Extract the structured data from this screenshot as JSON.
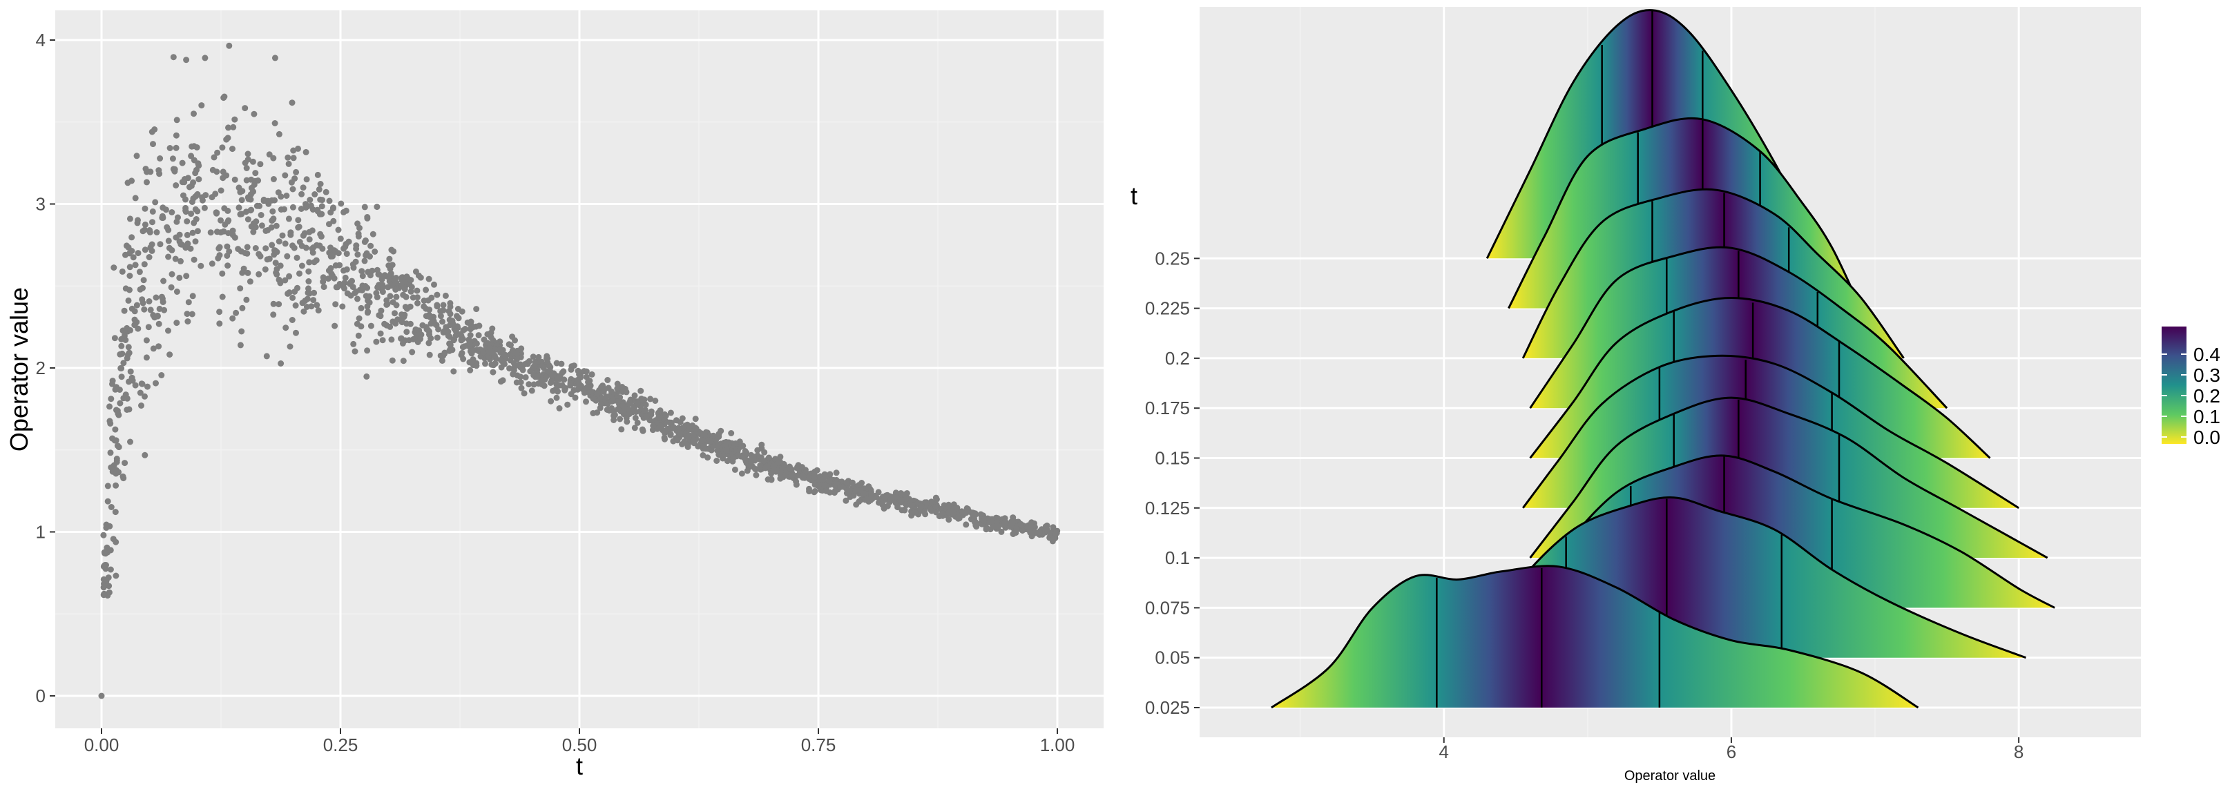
{
  "colors": {
    "panel_bg": "#ebebeb",
    "grid_major": "#ffffff",
    "grid_minor": "#f2f2f2",
    "point": "#7f7f7f",
    "ridge_line": "#000000",
    "viridis": [
      "#fde725",
      "#5ec962",
      "#21918c",
      "#3b528b",
      "#440154"
    ]
  },
  "chart_data": [
    {
      "type": "scatter",
      "xlabel": "t",
      "ylabel": "Operator value",
      "xlim": [
        0,
        1
      ],
      "ylim": [
        0,
        4
      ],
      "x_ticks": [
        "0.00",
        "0.25",
        "0.50",
        "0.75",
        "1.00"
      ],
      "y_ticks": [
        "0",
        "1",
        "2",
        "3",
        "4"
      ],
      "grid": true,
      "legend": "none",
      "n_points": 2000,
      "point_color": "#7f7f7f",
      "trend": [
        {
          "x": 0.0,
          "y": 0.0
        },
        {
          "x": 0.01,
          "y": 1.3
        },
        {
          "x": 0.03,
          "y": 2.35
        },
        {
          "x": 0.06,
          "y": 2.75
        },
        {
          "x": 0.1,
          "y": 2.95
        },
        {
          "x": 0.15,
          "y": 2.95
        },
        {
          "x": 0.2,
          "y": 2.8
        },
        {
          "x": 0.25,
          "y": 2.6
        },
        {
          "x": 0.3,
          "y": 2.42
        },
        {
          "x": 0.4,
          "y": 2.12
        },
        {
          "x": 0.5,
          "y": 1.9
        },
        {
          "x": 0.6,
          "y": 1.63
        },
        {
          "x": 0.7,
          "y": 1.4
        },
        {
          "x": 0.8,
          "y": 1.23
        },
        {
          "x": 0.9,
          "y": 1.1
        },
        {
          "x": 1.0,
          "y": 0.98
        }
      ],
      "spread": [
        {
          "x": 0.01,
          "s": 0.35
        },
        {
          "x": 0.05,
          "s": 0.45
        },
        {
          "x": 0.1,
          "s": 0.42
        },
        {
          "x": 0.2,
          "s": 0.3
        },
        {
          "x": 0.3,
          "s": 0.14
        },
        {
          "x": 0.4,
          "s": 0.08
        },
        {
          "x": 0.5,
          "s": 0.06
        },
        {
          "x": 0.75,
          "s": 0.03
        },
        {
          "x": 1.0,
          "s": 0.02
        }
      ]
    },
    {
      "type": "ridgeline",
      "xlabel": "Operator value",
      "ylabel": "t",
      "xlim": [
        2.3,
        8.85
      ],
      "x_ticks": [
        "4",
        "6",
        "8"
      ],
      "y_categories": [
        "0.025",
        "0.05",
        "0.075",
        "0.1",
        "0.125",
        "0.15",
        "0.175",
        "0.2",
        "0.225",
        "0.25"
      ],
      "fill": "viridis tail probability (0 at tails to 0.5 at median)",
      "quantile_lines": [
        0.25,
        0.5,
        0.75
      ],
      "legend": {
        "position": "right",
        "labels": [
          "0.4",
          "0.3",
          "0.2",
          "0.1",
          "0.0"
        ]
      },
      "grid": true,
      "series": [
        {
          "t": "0.025",
          "range": [
            2.8,
            7.3
          ],
          "quantiles": [
            3.95,
            4.68,
            5.5
          ],
          "density": [
            [
              2.8,
              0
            ],
            [
              3.2,
              0.25
            ],
            [
              3.5,
              0.62
            ],
            [
              3.8,
              0.82
            ],
            [
              4.1,
              0.8
            ],
            [
              4.4,
              0.85
            ],
            [
              4.8,
              0.88
            ],
            [
              5.2,
              0.75
            ],
            [
              5.6,
              0.55
            ],
            [
              6.0,
              0.42
            ],
            [
              6.4,
              0.36
            ],
            [
              6.9,
              0.22
            ],
            [
              7.3,
              0
            ]
          ]
        },
        {
          "t": "0.05",
          "range": [
            4.15,
            8.05
          ],
          "quantiles": [
            4.85,
            5.55,
            6.35
          ],
          "density": [
            [
              4.15,
              0
            ],
            [
              4.5,
              0.45
            ],
            [
              4.9,
              0.8
            ],
            [
              5.3,
              0.95
            ],
            [
              5.6,
              1.0
            ],
            [
              5.9,
              0.92
            ],
            [
              6.3,
              0.8
            ],
            [
              6.7,
              0.55
            ],
            [
              7.1,
              0.35
            ],
            [
              7.6,
              0.15
            ],
            [
              8.05,
              0
            ]
          ]
        },
        {
          "t": "0.075",
          "range": [
            4.45,
            8.25
          ],
          "quantiles": [
            5.3,
            5.95,
            6.7
          ],
          "density": [
            [
              4.45,
              0
            ],
            [
              4.8,
              0.35
            ],
            [
              5.2,
              0.72
            ],
            [
              5.6,
              0.88
            ],
            [
              5.95,
              0.95
            ],
            [
              6.3,
              0.85
            ],
            [
              6.7,
              0.68
            ],
            [
              7.2,
              0.52
            ],
            [
              7.6,
              0.35
            ],
            [
              8.0,
              0.12
            ],
            [
              8.25,
              0
            ]
          ]
        },
        {
          "t": "0.1",
          "range": [
            4.6,
            8.2
          ],
          "quantiles": [
            5.6,
            6.05,
            6.75
          ],
          "density": [
            [
              4.6,
              0
            ],
            [
              4.9,
              0.35
            ],
            [
              5.2,
              0.7
            ],
            [
              5.6,
              0.9
            ],
            [
              6.0,
              1.0
            ],
            [
              6.4,
              0.9
            ],
            [
              6.8,
              0.75
            ],
            [
              7.2,
              0.5
            ],
            [
              7.6,
              0.3
            ],
            [
              8.2,
              0
            ]
          ]
        },
        {
          "t": "0.125",
          "range": [
            4.55,
            8.0
          ],
          "quantiles": [
            5.5,
            6.1,
            6.7
          ],
          "density": [
            [
              4.55,
              0
            ],
            [
              4.8,
              0.3
            ],
            [
              5.1,
              0.65
            ],
            [
              5.5,
              0.88
            ],
            [
              5.9,
              0.95
            ],
            [
              6.3,
              0.9
            ],
            [
              6.7,
              0.72
            ],
            [
              7.1,
              0.48
            ],
            [
              7.5,
              0.28
            ],
            [
              8.0,
              0
            ]
          ]
        },
        {
          "t": "0.15",
          "range": [
            4.6,
            7.8
          ],
          "quantiles": [
            5.6,
            6.15,
            6.75
          ],
          "density": [
            [
              4.6,
              0
            ],
            [
              4.9,
              0.35
            ],
            [
              5.2,
              0.72
            ],
            [
              5.6,
              0.92
            ],
            [
              6.0,
              1.0
            ],
            [
              6.4,
              0.92
            ],
            [
              6.8,
              0.7
            ],
            [
              7.2,
              0.45
            ],
            [
              7.5,
              0.25
            ],
            [
              7.8,
              0
            ]
          ]
        },
        {
          "t": "0.175",
          "range": [
            4.6,
            7.5
          ],
          "quantiles": [
            5.55,
            6.05,
            6.6
          ],
          "density": [
            [
              4.6,
              0
            ],
            [
              4.9,
              0.4
            ],
            [
              5.2,
              0.8
            ],
            [
              5.6,
              0.95
            ],
            [
              6.0,
              1.0
            ],
            [
              6.4,
              0.85
            ],
            [
              6.8,
              0.6
            ],
            [
              7.1,
              0.38
            ],
            [
              7.5,
              0
            ]
          ]
        },
        {
          "t": "0.2",
          "range": [
            4.55,
            7.2
          ],
          "quantiles": [
            5.45,
            5.95,
            6.4
          ],
          "density": [
            [
              4.55,
              0
            ],
            [
              4.8,
              0.45
            ],
            [
              5.1,
              0.85
            ],
            [
              5.5,
              1.0
            ],
            [
              5.9,
              1.05
            ],
            [
              6.3,
              0.9
            ],
            [
              6.6,
              0.65
            ],
            [
              6.9,
              0.38
            ],
            [
              7.2,
              0
            ]
          ]
        },
        {
          "t": "0.225",
          "range": [
            4.45,
            6.9
          ],
          "quantiles": [
            5.35,
            5.8,
            6.2
          ],
          "density": [
            [
              4.45,
              0
            ],
            [
              4.7,
              0.45
            ],
            [
              5.0,
              0.95
            ],
            [
              5.4,
              1.12
            ],
            [
              5.8,
              1.18
            ],
            [
              6.2,
              0.98
            ],
            [
              6.5,
              0.65
            ],
            [
              6.7,
              0.38
            ],
            [
              6.9,
              0
            ]
          ]
        },
        {
          "t": "0.25",
          "range": [
            4.3,
            6.65
          ],
          "quantiles": [
            5.1,
            5.45,
            5.8
          ],
          "density": [
            [
              4.3,
              0
            ],
            [
              4.6,
              0.55
            ],
            [
              4.9,
              1.1
            ],
            [
              5.2,
              1.45
            ],
            [
              5.45,
              1.55
            ],
            [
              5.7,
              1.42
            ],
            [
              6.0,
              1.05
            ],
            [
              6.3,
              0.6
            ],
            [
              6.65,
              0
            ]
          ]
        }
      ]
    }
  ]
}
